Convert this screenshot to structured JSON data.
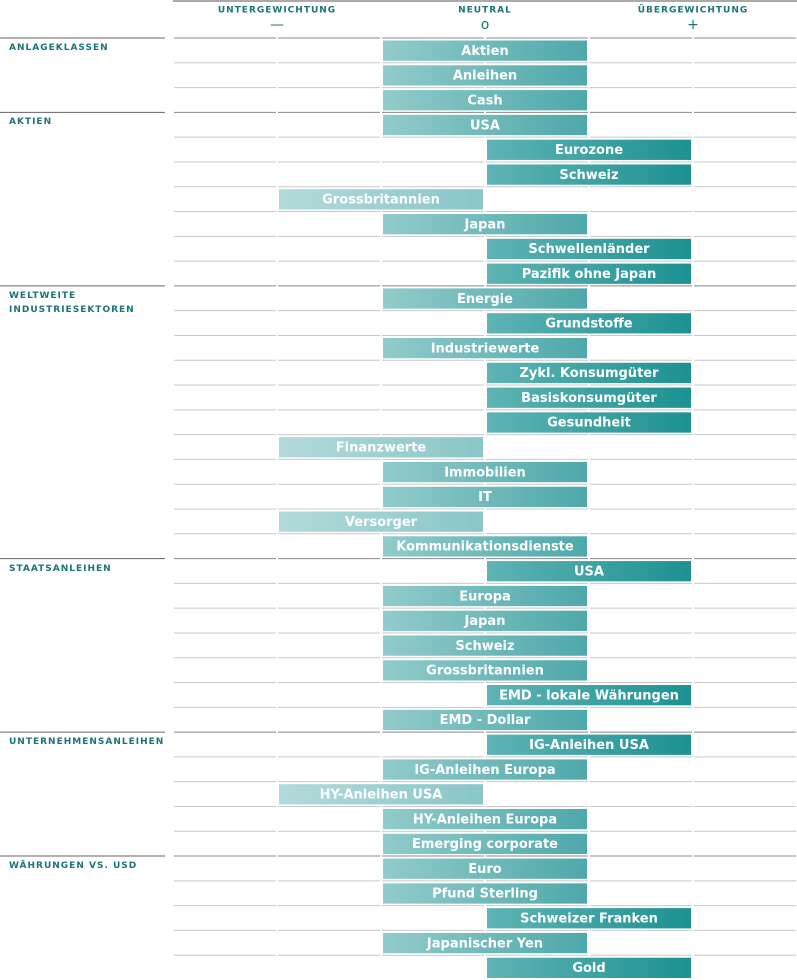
{
  "chart_data": {
    "type": "positioning",
    "scale_labels": [
      "UNTERGEWICHTUNG",
      "NEUTRAL",
      "ÜBERGEWICHTUNG"
    ],
    "xlim": [
      -3,
      3
    ],
    "xticks": [
      {
        "value": -2,
        "label": "—"
      },
      {
        "value": 0,
        "label": "o"
      },
      {
        "value": 2,
        "label": "+"
      }
    ],
    "palette": {
      "under": [
        "#b3dadb",
        "#8ac6c7"
      ],
      "neutral": [
        "#92cbcb",
        "#4ea8aa"
      ],
      "over": [
        "#5fb4b4",
        "#1d9192"
      ]
    },
    "groups": [
      {
        "name": "ANLAGEKLASSEN",
        "items": [
          {
            "label": "Aktien",
            "value": 0
          },
          {
            "label": "Anleihen",
            "value": 0
          },
          {
            "label": "Cash",
            "value": 0
          }
        ]
      },
      {
        "name": "AKTIEN",
        "items": [
          {
            "label": "USA",
            "value": 0
          },
          {
            "label": "Eurozone",
            "value": 1
          },
          {
            "label": "Schweiz",
            "value": 1
          },
          {
            "label": "Grossbritannien",
            "value": -1
          },
          {
            "label": "Japan",
            "value": 0
          },
          {
            "label": "Schwellenländer",
            "value": 1
          },
          {
            "label": "Pazifik ohne Japan",
            "value": 1
          }
        ]
      },
      {
        "name": "WELTWEITE INDUSTRIESEKTOREN",
        "items": [
          {
            "label": "Energie",
            "value": 0
          },
          {
            "label": "Grundstoffe",
            "value": 1
          },
          {
            "label": "Industriewerte",
            "value": 0
          },
          {
            "label": "Zykl. Konsumgüter",
            "value": 1
          },
          {
            "label": "Basiskonsumgüter",
            "value": 1
          },
          {
            "label": "Gesundheit",
            "value": 1
          },
          {
            "label": "Finanzwerte",
            "value": -1
          },
          {
            "label": "Immobilien",
            "value": 0
          },
          {
            "label": "IT",
            "value": 0
          },
          {
            "label": "Versorger",
            "value": -1
          },
          {
            "label": "Kommunikationsdienste",
            "value": 0
          }
        ]
      },
      {
        "name": "STAATSANLEIHEN",
        "items": [
          {
            "label": "USA",
            "value": 1
          },
          {
            "label": "Europa",
            "value": 0
          },
          {
            "label": "Japan",
            "value": 0
          },
          {
            "label": "Schweiz",
            "value": 0
          },
          {
            "label": "Grossbritannien",
            "value": 0
          },
          {
            "label": "EMD - lokale Währungen",
            "value": 1
          },
          {
            "label": "EMD - Dollar",
            "value": 0
          }
        ]
      },
      {
        "name": "UNTERNEHMENSANLEIHEN",
        "items": [
          {
            "label": "IG-Anleihen USA",
            "value": 1
          },
          {
            "label": "IG-Anleihen Europa",
            "value": 0
          },
          {
            "label": "HY-Anleihen USA",
            "value": -1
          },
          {
            "label": "HY-Anleihen Europa",
            "value": 0
          },
          {
            "label": "Emerging corporate",
            "value": 0
          }
        ]
      },
      {
        "name": "WÄHRUNGEN VS. USD",
        "items": [
          {
            "label": "Euro",
            "value": 0
          },
          {
            "label": "Pfund Sterling",
            "value": 0
          },
          {
            "label": "Schweizer Franken",
            "value": 1
          },
          {
            "label": "Japanischer Yen",
            "value": 0
          },
          {
            "label": "Gold",
            "value": 1
          }
        ]
      }
    ]
  }
}
